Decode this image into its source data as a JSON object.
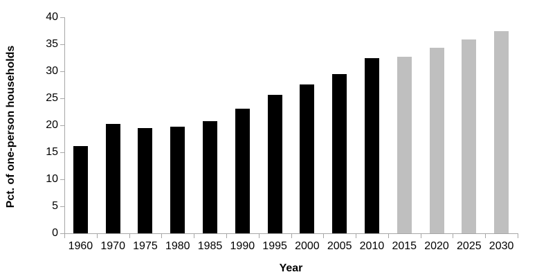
{
  "chart_data": {
    "type": "bar",
    "title": "",
    "xlabel": "Year",
    "ylabel": "Pct. of one-person households",
    "categories": [
      "1960",
      "1970",
      "1975",
      "1980",
      "1985",
      "1990",
      "1995",
      "2000",
      "2005",
      "2010",
      "2015",
      "2020",
      "2025",
      "2030"
    ],
    "values": [
      16.1,
      20.3,
      19.5,
      19.8,
      20.8,
      23.1,
      25.6,
      27.6,
      29.5,
      32.4,
      32.7,
      34.4,
      35.9,
      37.4
    ],
    "bar_color_keys": [
      "black",
      "black",
      "black",
      "black",
      "black",
      "black",
      "black",
      "black",
      "black",
      "black",
      "gray",
      "gray",
      "gray",
      "gray"
    ],
    "colors": {
      "black": "#000000",
      "gray": "#bfbfbf",
      "axis": "#a6a6a6",
      "text": "#000000"
    },
    "y_axis": {
      "min": 0,
      "max": 40,
      "step": 5,
      "tick_labels": [
        "0",
        "5",
        "10",
        "15",
        "20",
        "25",
        "30",
        "35",
        "40"
      ]
    },
    "grid": false,
    "legend": "none"
  }
}
